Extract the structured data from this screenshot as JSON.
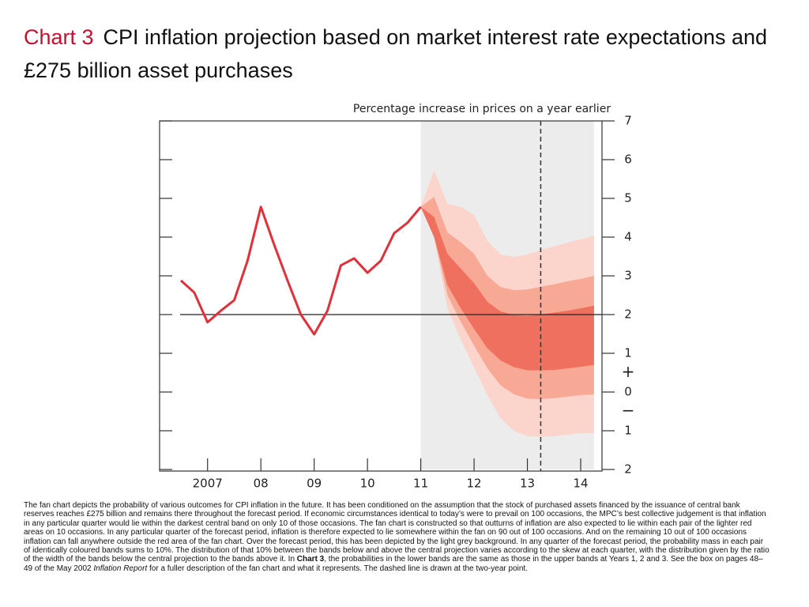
{
  "chart_data": {
    "type": "line",
    "title_lead": "Chart 3",
    "title": "CPI inflation projection based on market interest rate expectations and £275 billion asset purchases",
    "y_axis_label": "Percentage increase in prices on a year earlier",
    "x": [
      2006.5,
      2006.75,
      2007.0,
      2007.25,
      2007.5,
      2007.75,
      2008.0,
      2008.25,
      2008.5,
      2008.75,
      2009.0,
      2009.25,
      2009.5,
      2009.75,
      2010.0,
      2010.25,
      2010.5,
      2010.75,
      2011.0
    ],
    "series": [
      {
        "color": "#e0303a",
        "values": [
          2.88,
          2.57,
          1.8,
          2.1,
          2.37,
          3.39,
          4.78,
          3.8,
          2.88,
          2.0,
          1.49,
          2.1,
          3.27,
          3.45,
          3.08,
          3.39,
          4.1,
          4.37,
          4.78
        ]
      }
    ],
    "fan": {
      "x": [
        2011.0,
        2011.25,
        2011.5,
        2011.75,
        2012.0,
        2012.25,
        2012.5,
        2012.75,
        2013.0,
        2013.25,
        2013.5,
        2013.75,
        2014.0,
        2014.25
      ],
      "bands": [
        {
          "color": "#fbd5cb",
          "upper": [
            4.78,
            5.73,
            4.86,
            4.78,
            4.57,
            3.9,
            3.55,
            3.49,
            3.55,
            3.67,
            3.76,
            3.86,
            3.94,
            4.04
          ],
          "lower": [
            4.78,
            4.0,
            2.16,
            1.35,
            0.63,
            -0.08,
            -0.69,
            -1.0,
            -1.14,
            -1.16,
            -1.14,
            -1.1,
            -1.06,
            -1.06
          ]
        },
        {
          "color": "#f7a996",
          "upper": [
            4.78,
            5.04,
            4.12,
            3.87,
            3.57,
            3.0,
            2.71,
            2.63,
            2.65,
            2.72,
            2.78,
            2.86,
            2.92,
            3.0
          ],
          "lower": [
            4.78,
            4.0,
            2.5,
            1.81,
            1.2,
            0.61,
            0.17,
            -0.06,
            -0.17,
            -0.18,
            -0.16,
            -0.12,
            -0.08,
            -0.06
          ]
        },
        {
          "color": "#f0705f",
          "upper": [
            4.78,
            4.52,
            3.57,
            3.19,
            2.81,
            2.33,
            2.08,
            1.99,
            1.97,
            2.0,
            2.05,
            2.1,
            2.16,
            2.23
          ],
          "lower": [
            4.78,
            4.0,
            2.76,
            2.16,
            1.63,
            1.13,
            0.81,
            0.64,
            0.56,
            0.56,
            0.57,
            0.61,
            0.65,
            0.7
          ]
        }
      ]
    },
    "forecast_shade": [
      2011.0,
      2014.25
    ],
    "shade_color": "#ececec",
    "dashed_x": 2013.25,
    "target_line": 2,
    "xlim": [
      2006.1,
      2014.4
    ],
    "xticks": [
      {
        "value": 2007,
        "label": "2007"
      },
      {
        "value": 2008,
        "label": "08"
      },
      {
        "value": 2009,
        "label": "09"
      },
      {
        "value": 2010,
        "label": "10"
      },
      {
        "value": 2011,
        "label": "11"
      },
      {
        "value": 2012,
        "label": "12"
      },
      {
        "value": 2013,
        "label": "13"
      },
      {
        "value": 2014,
        "label": "14"
      }
    ],
    "ylim": [
      -2,
      7
    ],
    "yticks": [
      7,
      6,
      5,
      4,
      3,
      2,
      1,
      0,
      {
        "value": -1,
        "label": "1"
      },
      {
        "value": -2,
        "label": "2"
      }
    ],
    "sign_labels": [
      {
        "text": "+",
        "y": 0.5
      },
      {
        "text": "−",
        "y": -0.5
      }
    ],
    "note": [
      "The fan chart depicts the probability of various outcomes for CPI inflation in the future.  It has been conditioned on the assumption that the stock of purchased assets financed by the issuance of central bank reserves reaches £275 billion and remains there throughout the forecast period.  If economic circumstances identical to today’s were to prevail on 100 occasions, the MPC’s best collective judgement is that inflation in any particular quarter would lie within the darkest central band on only 10 of those occasions.  The fan chart is constructed so that outturns of inflation are also expected to lie within each pair of the lighter red areas on 10 occasions.  In any particular quarter of the forecast period, inflation is therefore expected to lie somewhere within the fan on 90 out of 100 occasions.  And on the remaining 10 out of 100 occasions inflation can fall anywhere outside the red area of the fan chart.  Over the forecast period, this has been depicted by the light grey background.  In any quarter of the forecast period, the probability mass in each pair of identically coloured bands sums to 10%.  The distribution of that 10% between the bands below and above the central projection varies according to the skew at each quarter, with the distribution given by the ratio of the width of the bands below the central projection to the bands above it.  In ",
      "Chart 3",
      ", the probabilities in the lower bands are the same as those in the upper bands at Years 1, 2 and 3.  See the box on pages 48–49 of the May 2002 ",
      "Inflation Report",
      " for a fuller description of the fan chart and what it represents.  The dashed line is drawn at the two-year point."
    ]
  }
}
